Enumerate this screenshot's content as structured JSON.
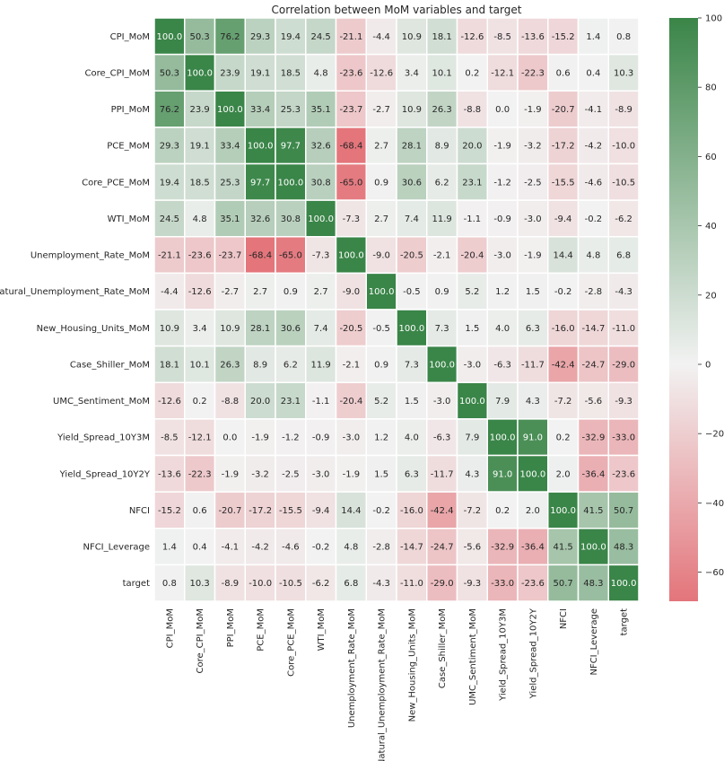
{
  "chart_data": {
    "type": "heatmap",
    "title": "Correlation between MoM variables and target",
    "xlabel": "",
    "ylabel": "",
    "labels": [
      "CPI_MoM",
      "Core_CPI_MoM",
      "PPI_MoM",
      "PCE_MoM",
      "Core_PCE_MoM",
      "WTI_MoM",
      "Unemployment_Rate_MoM",
      "Natural_Unemployment_Rate_MoM",
      "New_Housing_Units_MoM",
      "Case_Shiller_MoM",
      "UMC_Sentiment_MoM",
      "Yield_Spread_10Y3M",
      "Yield_Spread_10Y2Y",
      "NFCI",
      "NFCI_Leverage",
      "target"
    ],
    "values": [
      [
        100.0,
        50.3,
        76.2,
        29.3,
        19.4,
        24.5,
        -21.1,
        -4.4,
        10.9,
        18.1,
        -12.6,
        -8.5,
        -13.6,
        -15.2,
        1.4,
        0.8
      ],
      [
        50.3,
        100.0,
        23.9,
        19.1,
        18.5,
        4.8,
        -23.6,
        -12.6,
        3.4,
        10.1,
        0.2,
        -12.1,
        -22.3,
        0.6,
        0.4,
        10.3
      ],
      [
        76.2,
        23.9,
        100.0,
        33.4,
        25.3,
        35.1,
        -23.7,
        -2.7,
        10.9,
        26.3,
        -8.8,
        -0.0,
        -1.9,
        -20.7,
        -4.1,
        -8.9
      ],
      [
        29.3,
        19.1,
        33.4,
        100.0,
        97.7,
        32.6,
        -68.4,
        2.7,
        28.1,
        8.9,
        20.0,
        -1.9,
        -3.2,
        -17.2,
        -4.2,
        -10.0
      ],
      [
        19.4,
        18.5,
        25.3,
        97.7,
        100.0,
        30.8,
        -65.0,
        0.9,
        30.6,
        6.2,
        23.1,
        -1.2,
        -2.5,
        -15.5,
        -4.6,
        -10.5
      ],
      [
        24.5,
        4.8,
        35.1,
        32.6,
        30.8,
        100.0,
        -7.3,
        2.7,
        7.4,
        11.9,
        -1.1,
        -0.9,
        -3.0,
        -9.4,
        -0.2,
        -6.2
      ],
      [
        -21.1,
        -23.6,
        -23.7,
        -68.4,
        -65.0,
        -7.3,
        100.0,
        -9.0,
        -20.5,
        -2.1,
        -20.4,
        -3.0,
        -1.9,
        14.4,
        4.8,
        6.8
      ],
      [
        -4.4,
        -12.6,
        -2.7,
        2.7,
        0.9,
        2.7,
        -9.0,
        100.0,
        -0.5,
        0.9,
        5.2,
        1.2,
        1.5,
        -0.2,
        -2.8,
        -4.3
      ],
      [
        10.9,
        3.4,
        10.9,
        28.1,
        30.6,
        7.4,
        -20.5,
        -0.5,
        100.0,
        7.3,
        1.5,
        4.0,
        6.3,
        -16.0,
        -14.7,
        -11.0
      ],
      [
        18.1,
        10.1,
        26.3,
        8.9,
        6.2,
        11.9,
        -2.1,
        0.9,
        7.3,
        100.0,
        -3.0,
        -6.3,
        -11.7,
        -42.4,
        -24.7,
        -29.0
      ],
      [
        -12.6,
        0.2,
        -8.8,
        20.0,
        23.1,
        -1.1,
        -20.4,
        5.2,
        1.5,
        -3.0,
        100.0,
        7.9,
        4.3,
        -7.2,
        -5.6,
        -9.3
      ],
      [
        -8.5,
        -12.1,
        -0.0,
        -1.9,
        -1.2,
        -0.9,
        -3.0,
        1.2,
        4.0,
        -6.3,
        7.9,
        100.0,
        91.0,
        0.2,
        -32.9,
        -33.0
      ],
      [
        -13.6,
        -22.3,
        -1.9,
        -3.2,
        -2.5,
        -3.0,
        -1.9,
        1.5,
        6.3,
        -11.7,
        4.3,
        91.0,
        100.0,
        2.0,
        -36.4,
        -23.6
      ],
      [
        -15.2,
        0.6,
        -20.7,
        -17.2,
        -15.5,
        -9.4,
        14.4,
        -0.2,
        -16.0,
        -42.4,
        -7.2,
        0.2,
        2.0,
        100.0,
        41.5,
        50.7
      ],
      [
        1.4,
        0.4,
        -4.1,
        -4.2,
        -4.6,
        -0.2,
        4.8,
        -2.8,
        -14.7,
        -24.7,
        -5.6,
        -32.9,
        -36.4,
        41.5,
        100.0,
        48.3
      ],
      [
        0.8,
        10.3,
        -8.9,
        -10.0,
        -10.5,
        -6.2,
        6.8,
        -4.3,
        -11.0,
        -29.0,
        -9.3,
        -33.0,
        -23.6,
        50.7,
        48.3,
        100.0
      ]
    ],
    "value_range": [
      -68.4,
      100.0
    ],
    "colorbar": {
      "ticks": [
        -60,
        -40,
        -20,
        0,
        20,
        40,
        60,
        80,
        100
      ],
      "colors": {
        "negative": "#e3757b",
        "center": "#f2f2f2",
        "positive": "#3a8548"
      }
    },
    "grid": true,
    "legend": "right"
  }
}
